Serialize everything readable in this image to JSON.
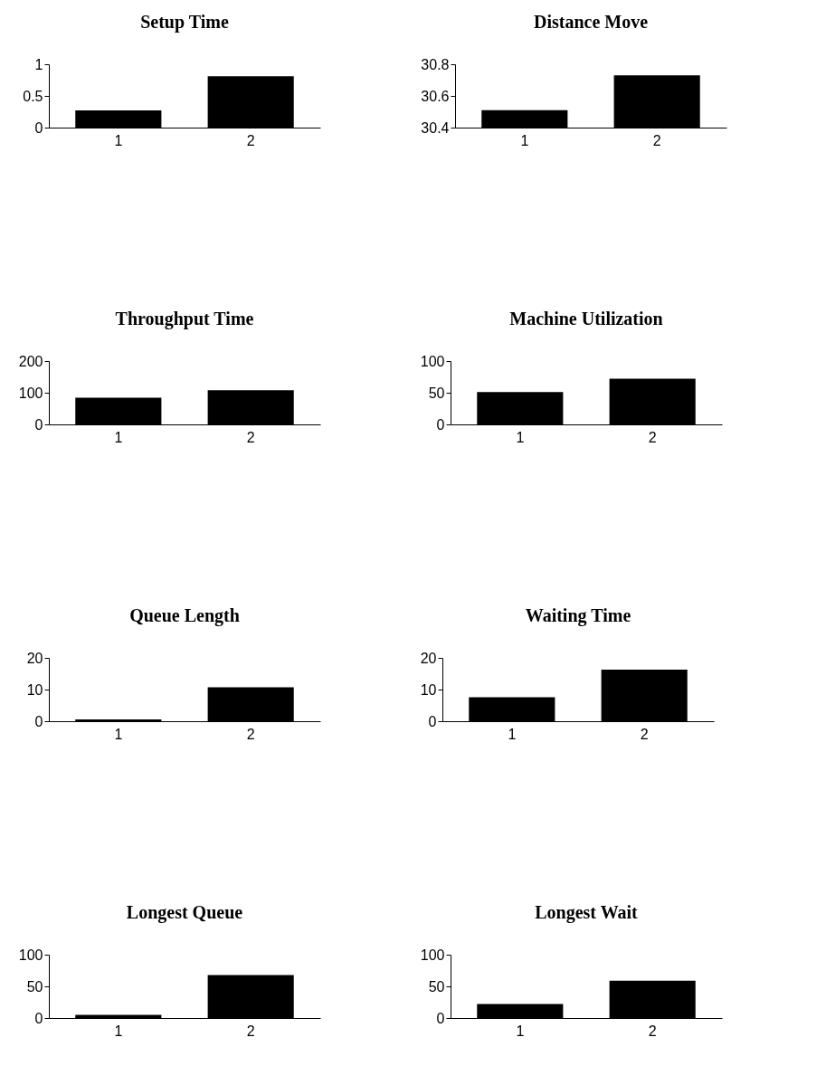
{
  "chart_data": [
    {
      "type": "bar",
      "title": "Setup Time",
      "categories": [
        "1",
        "2"
      ],
      "values": [
        0.27,
        0.81
      ],
      "color": "#000000",
      "ylim": [
        0,
        1
      ],
      "yticks": [
        0,
        0.5,
        1
      ],
      "grid": false
    },
    {
      "type": "bar",
      "title": "Distance Move",
      "categories": [
        "1",
        "2"
      ],
      "values": [
        30.51,
        30.73
      ],
      "color": "#000000",
      "ylim": [
        30.4,
        30.8
      ],
      "yticks": [
        30.4,
        30.6,
        30.8
      ],
      "grid": false
    },
    {
      "type": "bar",
      "title": "Throughput Time",
      "categories": [
        "1",
        "2"
      ],
      "values": [
        84,
        108
      ],
      "color": "#000000",
      "ylim": [
        0,
        200
      ],
      "yticks": [
        0,
        100,
        200
      ],
      "grid": false
    },
    {
      "type": "bar",
      "title": "Machine Utilization",
      "categories": [
        "1",
        "2"
      ],
      "values": [
        51,
        72
      ],
      "color": "#000000",
      "ylim": [
        0,
        100
      ],
      "yticks": [
        0,
        50,
        100
      ],
      "grid": false
    },
    {
      "type": "bar",
      "title": "Queue Length",
      "categories": [
        "1",
        "2"
      ],
      "values": [
        0.6,
        10.7
      ],
      "color": "#000000",
      "ylim": [
        0,
        20
      ],
      "yticks": [
        0,
        10,
        20
      ],
      "grid": false
    },
    {
      "type": "bar",
      "title": "Waiting Time",
      "categories": [
        "1",
        "2"
      ],
      "values": [
        7.6,
        16.3
      ],
      "color": "#000000",
      "ylim": [
        0,
        20
      ],
      "yticks": [
        0,
        10,
        20
      ],
      "grid": false
    },
    {
      "type": "bar",
      "title": "Longest Queue",
      "categories": [
        "1",
        "2"
      ],
      "values": [
        5,
        68
      ],
      "color": "#000000",
      "ylim": [
        0,
        100
      ],
      "yticks": [
        0,
        50,
        100
      ],
      "grid": false
    },
    {
      "type": "bar",
      "title": "Longest Wait",
      "categories": [
        "1",
        "2"
      ],
      "values": [
        22,
        59
      ],
      "color": "#000000",
      "ylim": [
        0,
        100
      ],
      "yticks": [
        0,
        50,
        100
      ],
      "grid": false
    }
  ]
}
